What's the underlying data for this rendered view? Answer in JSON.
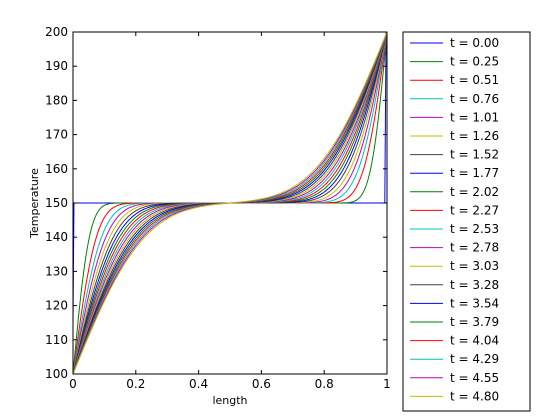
{
  "chart_data": {
    "type": "line",
    "title": "",
    "xlabel": "length",
    "ylabel": "Temperature",
    "xlim": [
      0,
      1
    ],
    "ylim": [
      100,
      200
    ],
    "x_ticks": [
      "0",
      "0.2",
      "0.4",
      "0.6",
      "0.8",
      "1"
    ],
    "y_ticks": [
      "100",
      "110",
      "120",
      "130",
      "140",
      "150",
      "160",
      "170",
      "180",
      "190",
      "200"
    ],
    "grid": false,
    "legend_position": "outside-right",
    "boundary_values": {
      "left": 100,
      "right": 200
    },
    "initial_value": 150,
    "series": [
      {
        "name": "t = 0.00",
        "time": 0.0,
        "color": "#0000ff"
      },
      {
        "name": "t = 0.25",
        "time": 0.25,
        "color": "#008000"
      },
      {
        "name": "t = 0.51",
        "time": 0.51,
        "color": "#ff0000"
      },
      {
        "name": "t = 0.76",
        "time": 0.76,
        "color": "#00bfbf"
      },
      {
        "name": "t = 1.01",
        "time": 1.01,
        "color": "#bf00bf"
      },
      {
        "name": "t = 1.26",
        "time": 1.26,
        "color": "#bfbf00"
      },
      {
        "name": "t = 1.52",
        "time": 1.52,
        "color": "#404040"
      },
      {
        "name": "t = 1.77",
        "time": 1.77,
        "color": "#0000ff"
      },
      {
        "name": "t = 2.02",
        "time": 2.02,
        "color": "#008000"
      },
      {
        "name": "t = 2.27",
        "time": 2.27,
        "color": "#ff0000"
      },
      {
        "name": "t = 2.53",
        "time": 2.53,
        "color": "#00bfbf"
      },
      {
        "name": "t = 2.78",
        "time": 2.78,
        "color": "#bf00bf"
      },
      {
        "name": "t = 3.03",
        "time": 3.03,
        "color": "#bfbf00"
      },
      {
        "name": "t = 3.28",
        "time": 3.28,
        "color": "#404040"
      },
      {
        "name": "t = 3.54",
        "time": 3.54,
        "color": "#0000ff"
      },
      {
        "name": "t = 3.79",
        "time": 3.79,
        "color": "#008000"
      },
      {
        "name": "t = 4.04",
        "time": 4.04,
        "color": "#ff0000"
      },
      {
        "name": "t = 4.29",
        "time": 4.29,
        "color": "#00bfbf"
      },
      {
        "name": "t = 4.55",
        "time": 4.55,
        "color": "#bf00bf"
      },
      {
        "name": "t = 4.80",
        "time": 4.8,
        "color": "#bfbf00"
      }
    ]
  }
}
